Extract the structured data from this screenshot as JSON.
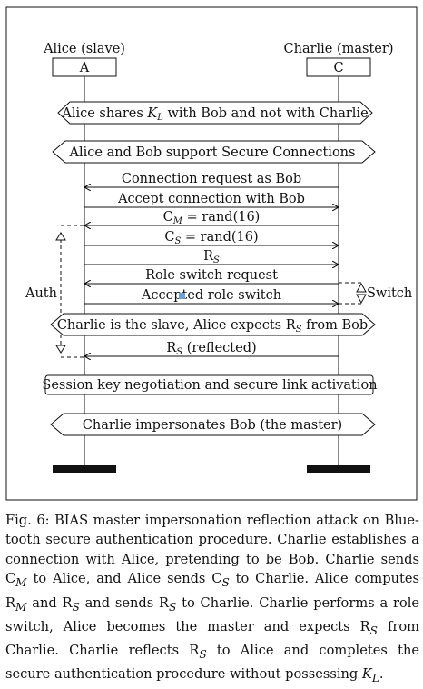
{
  "diagram": {
    "participants": {
      "left": {
        "name": "Alice (slave)",
        "box": "A"
      },
      "right": {
        "name": "Charlie (master)",
        "box": "C"
      }
    },
    "hexagons": [
      {
        "text": "Alice shares K_L with Bob and not with Charlie",
        "html": "Alice shares <tspan font-style=\"italic\">K</tspan><tspan font-style=\"italic\" font-size=\"10\" dy=\"3\">L</tspan><tspan dy=\"-3\"> with Bob and not with Charlie</tspan>"
      },
      {
        "text": "Alice and Bob support Secure Connections"
      },
      {
        "text": "Charlie is the slave, Alice expects R_S from Bob",
        "html": "Charlie is the slave, Alice expects R<tspan font-style=\"italic\" font-size=\"10\" dy=\"3\">S</tspan><tspan dy=\"-3\"> from Bob</tspan>"
      },
      {
        "text": "Charlie impersonates Bob (the master)"
      }
    ],
    "box_note": "Session key negotiation and secure link activation",
    "messages": [
      {
        "label": "Connection request as Bob",
        "dir": "left"
      },
      {
        "label": "Accept connection with Bob",
        "dir": "right"
      },
      {
        "label": "C_M = rand(16)",
        "html": "C<tspan font-style=\"italic\" font-size=\"10\" dy=\"3\">M</tspan><tspan dy=\"-3\"> = rand(16)</tspan>",
        "dir": "left"
      },
      {
        "label": "C_S = rand(16)",
        "html": "C<tspan font-style=\"italic\" font-size=\"10\" dy=\"3\">S</tspan><tspan dy=\"-3\"> = rand(16)</tspan>",
        "dir": "right"
      },
      {
        "label": "R_S",
        "html": "R<tspan font-style=\"italic\" font-size=\"10\" dy=\"3\">S</tspan>",
        "dir": "right"
      },
      {
        "label": "Role switch request",
        "dir": "left"
      },
      {
        "label": "Accepted role switch",
        "dir": "right"
      },
      {
        "label": "R_S (reflected)",
        "html": "R<tspan font-style=\"italic\" font-size=\"10\" dy=\"3\">S</tspan><tspan dy=\"-3\"> (reflected)</tspan>",
        "dir": "left"
      }
    ],
    "side_labels": {
      "auth": "Auth",
      "switch": "Switch"
    }
  },
  "caption": {
    "text": "Fig. 6: BIAS master impersonation reflection attack on Bluetooth secure authentication procedure. Charlie establishes a connection with Alice, pretending to be Bob. Charlie sends C_M to Alice, and Alice sends C_S to Charlie. Alice computes R_M and R_S and sends R_S to Charlie. Charlie performs a role switch, Alice becomes the master and expects R_S from Charlie. Charlie reflects R_S to Alice and completes the secure authentication procedure without possessing K_L.",
    "html": "Fig. 6: BIAS master impersonation reflection attack on Blue-tooth secure authentication procedure. Charlie establishes a connection with Alice, pretending to be Bob. Charlie sends C<sub><i>M</i></sub> to Alice, and Alice sends C<sub><i>S</i></sub> to Charlie. Alice computes R<sub><i>M</i></sub> and R<sub><i>S</i></sub> and sends R<sub><i>S</i></sub> to Charlie. Charlie performs a role switch, Alice becomes the master and expects R<sub><i>S</i></sub> from Charlie. Charlie reflects R<sub><i>S</i></sub> to Alice and completes the secure authentication procedure without possessing <i>K</i><sub><i>L</i></sub>."
  }
}
